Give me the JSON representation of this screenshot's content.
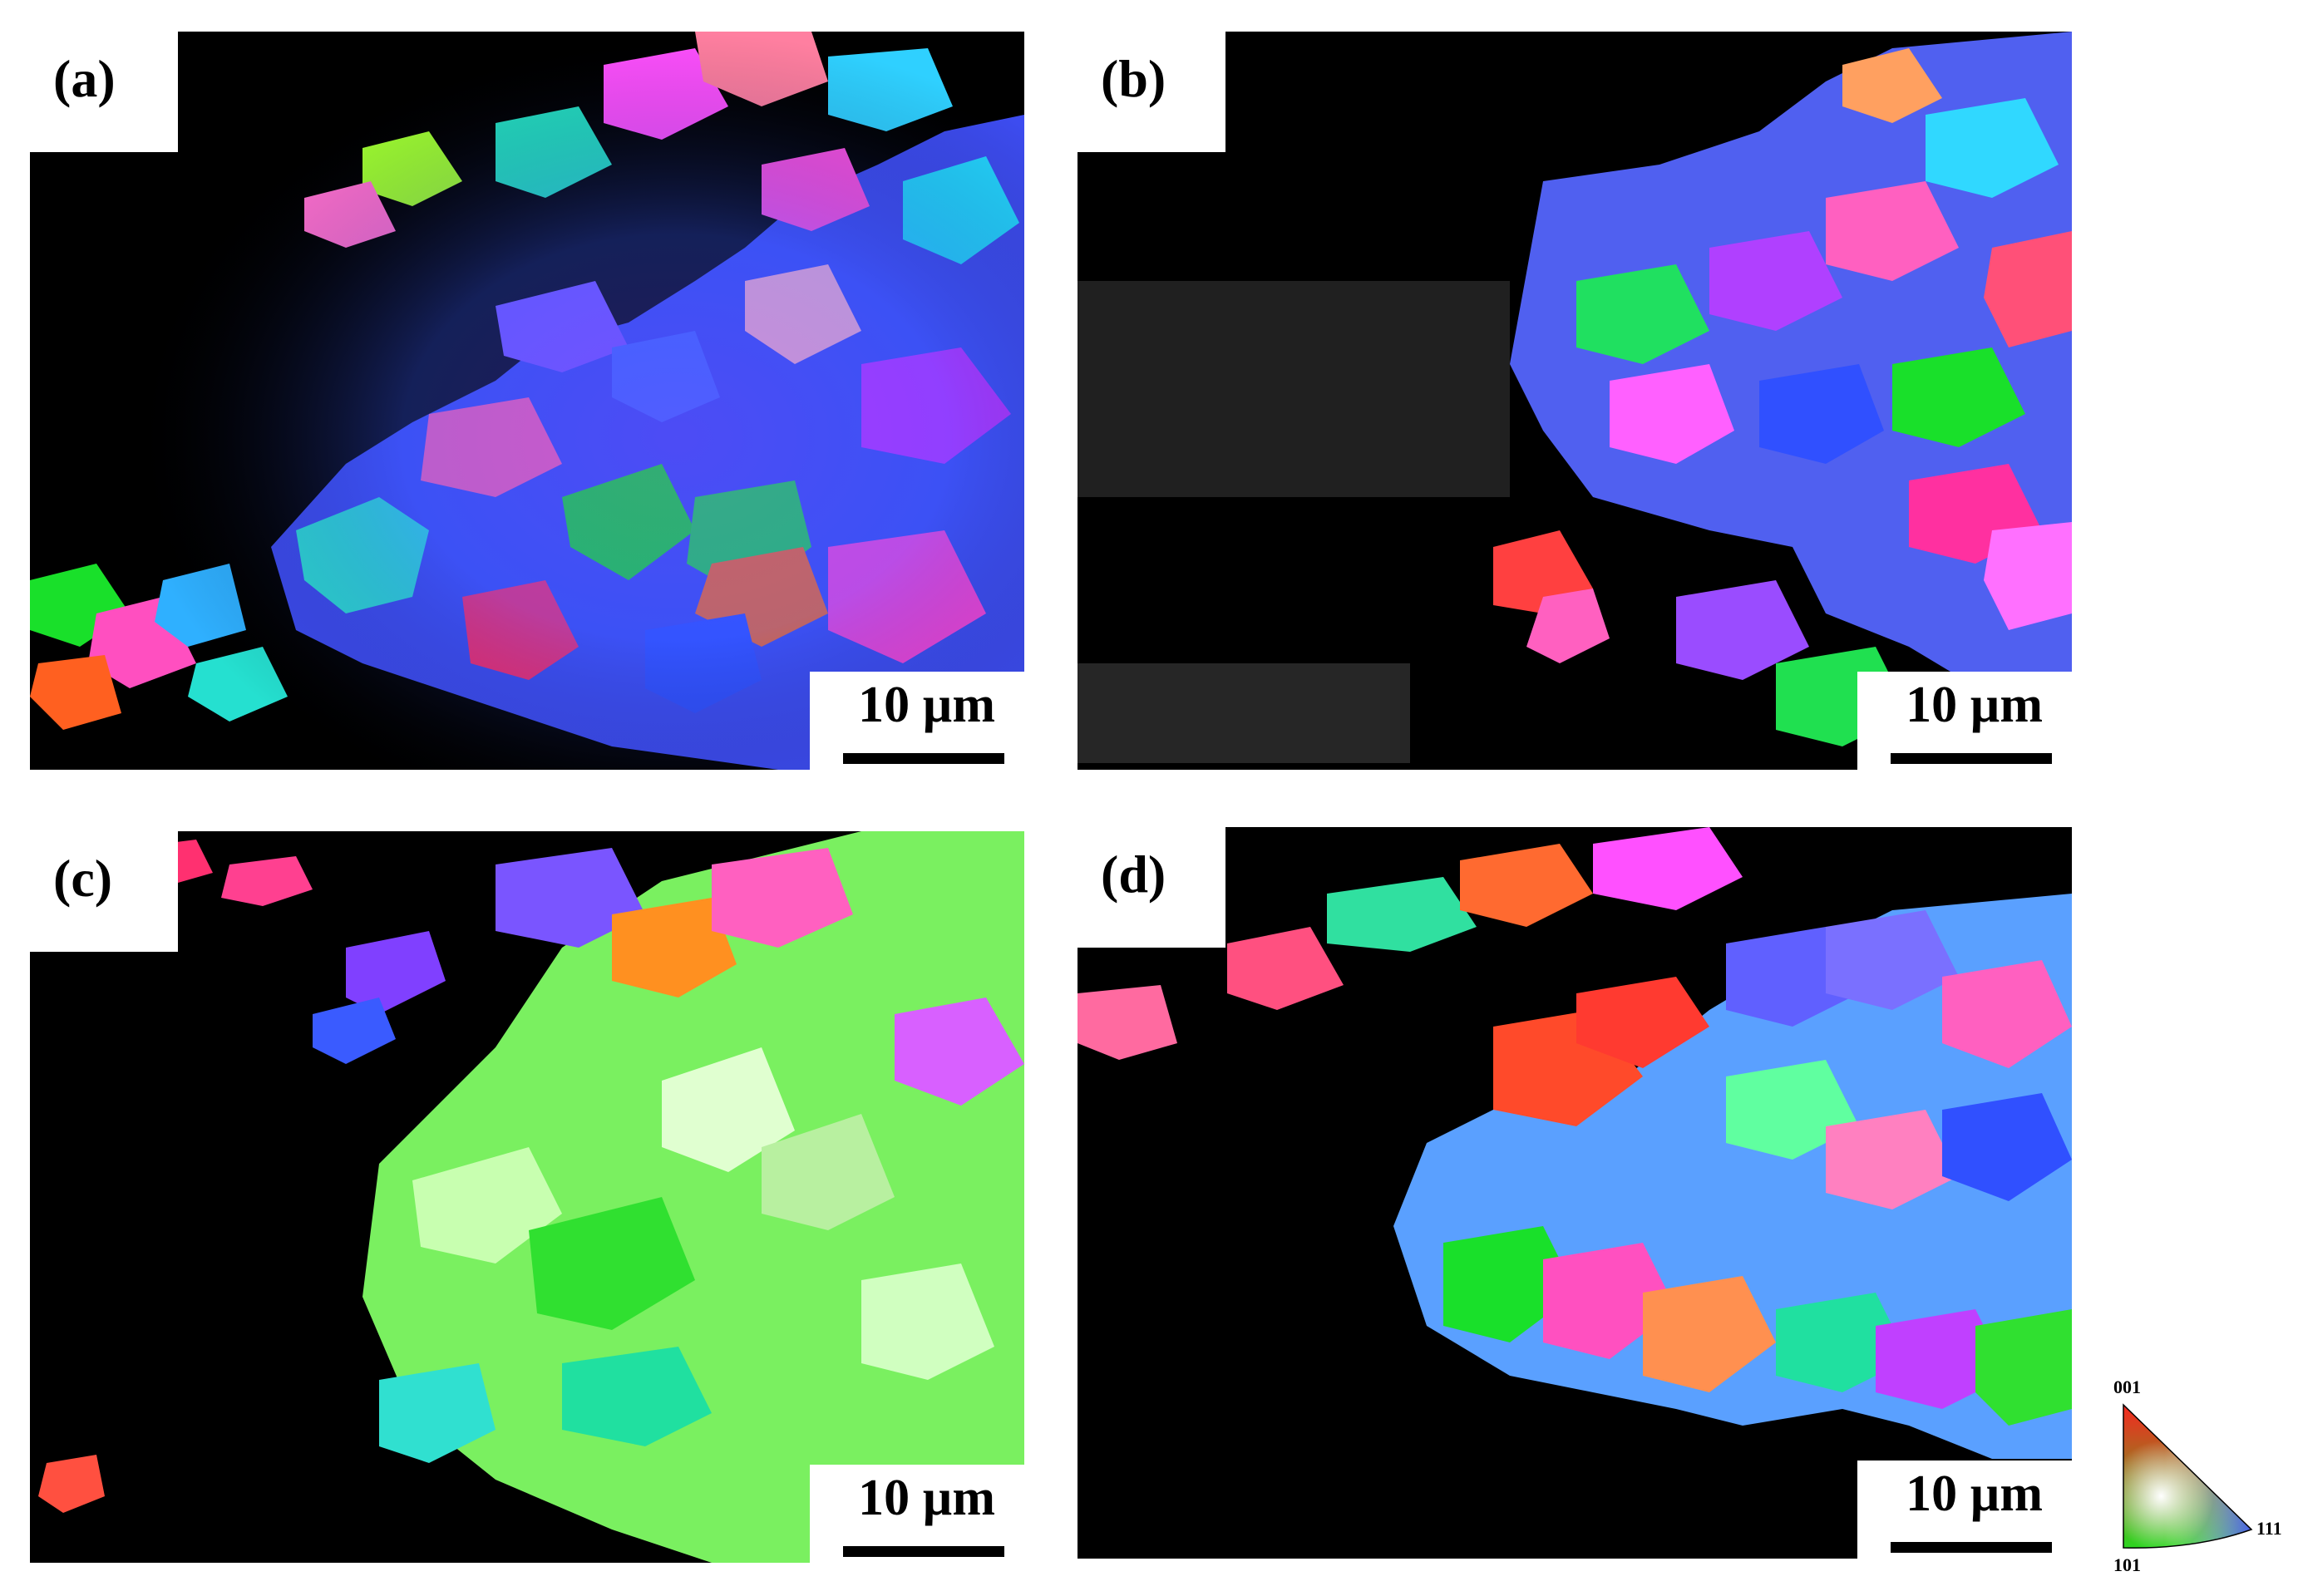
{
  "figure": {
    "panels": [
      {
        "label": "(a)",
        "scale": "10 µm"
      },
      {
        "label": "(b)",
        "scale": "10 µm"
      },
      {
        "label": "(c)",
        "scale": "10 µm"
      },
      {
        "label": "(d)",
        "scale": "10 µm"
      }
    ],
    "legend": {
      "top": "001",
      "bottom_left": "101",
      "right": "111"
    },
    "colors": {
      "background": "#000000",
      "frame": "#ffffff",
      "ipf_001": "#ff2020",
      "ipf_101": "#20e020",
      "ipf_111": "#3040ff"
    }
  }
}
